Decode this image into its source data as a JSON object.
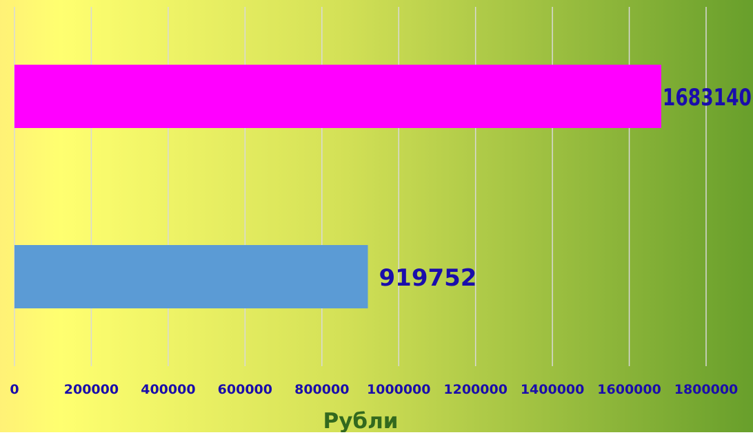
{
  "chart_data": {
    "type": "bar",
    "orientation": "horizontal",
    "title": "",
    "xlabel": "Рубли",
    "ylabel": "",
    "xlim": [
      0,
      1800000
    ],
    "ticks": [
      0,
      200000,
      400000,
      600000,
      800000,
      1000000,
      1200000,
      1400000,
      1600000,
      1800000
    ],
    "tick_labels": [
      "0",
      "200000",
      "400000",
      "600000",
      "800000",
      "1000000",
      "1200000",
      "1400000",
      "1600000",
      "1800000"
    ],
    "bars": [
      {
        "value": 1683140,
        "label": "1683140",
        "color": "#ff00ff"
      },
      {
        "value": 919752,
        "label": "919752",
        "color": "#5b9bd5"
      }
    ],
    "grid": true,
    "legend": "none"
  },
  "colors": {
    "background_start": "#fff176",
    "background_mid": "#d4e157",
    "background_end": "#689f2b",
    "gridline": "#d9d9d9",
    "tick_label": "#1a0dab",
    "data_label": "#1a0dab",
    "axis_title": "#33691e"
  }
}
